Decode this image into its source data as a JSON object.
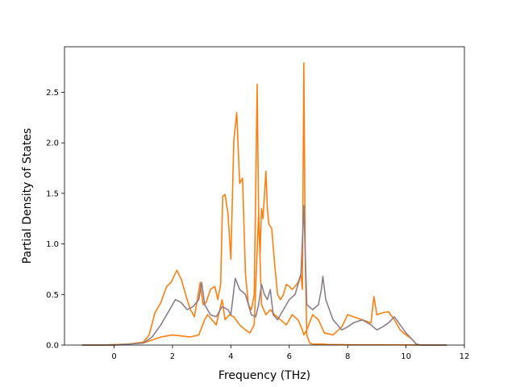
{
  "chart_data": {
    "type": "line",
    "title": "",
    "xlabel": "Frequency (THz)",
    "ylabel": "Partial Density of States",
    "xlim": [
      -1.7,
      12.0
    ],
    "ylim": [
      0,
      2.95
    ],
    "xticks": [
      0,
      2,
      4,
      6,
      8,
      10,
      12
    ],
    "yticks": [
      0.0,
      0.5,
      1.0,
      1.5,
      2.0,
      2.5
    ],
    "xtick_labels": [
      "0",
      "2",
      "4",
      "6",
      "8",
      "10",
      "12"
    ],
    "ytick_labels": [
      "0.0",
      "0.5",
      "1.0",
      "1.5",
      "2.0",
      "2.5"
    ],
    "grid": false,
    "legend": "none",
    "colors": {
      "orange": "#ff7f0e",
      "gray": "#8c7e88"
    },
    "series": [
      {
        "color": "#ff7f0e",
        "x": [
          -1.1,
          -0.5,
          0.0,
          0.5,
          1.0,
          1.2,
          1.4,
          1.6,
          1.8,
          1.95,
          2.05,
          2.15,
          2.3,
          2.45,
          2.6,
          2.75,
          2.85,
          2.95,
          3.0,
          3.05,
          3.15,
          3.3,
          3.45,
          3.55,
          3.65,
          3.72,
          3.8,
          3.9,
          4.0,
          4.1,
          4.2,
          4.3,
          4.4,
          4.5,
          4.6,
          4.7,
          4.8,
          4.9,
          4.95,
          5.0,
          5.05,
          5.1,
          5.2,
          5.25,
          5.3,
          5.4,
          5.5,
          5.6,
          5.7,
          5.8,
          5.9,
          6.0,
          6.1,
          6.2,
          6.3,
          6.4,
          6.45,
          6.5,
          6.55,
          6.6,
          6.7,
          6.8,
          6.9,
          7.0,
          7.1,
          7.2,
          7.3,
          7.4,
          7.6,
          7.8,
          8.0,
          8.2,
          8.4,
          8.6,
          8.7,
          8.8,
          8.85,
          8.95,
          9.05,
          9.2,
          9.35,
          9.5,
          9.7,
          9.9,
          10.1,
          10.25,
          10.35,
          10.5,
          11.4
        ],
        "y": [
          0,
          0,
          0.005,
          0.01,
          0.03,
          0.1,
          0.32,
          0.42,
          0.58,
          0.62,
          0.68,
          0.74,
          0.65,
          0.5,
          0.36,
          0.28,
          0.45,
          0.62,
          0.5,
          0.4,
          0.42,
          0.55,
          0.58,
          0.45,
          0.6,
          1.47,
          1.49,
          1.3,
          0.85,
          2.02,
          2.3,
          1.6,
          1.65,
          0.7,
          0.4,
          0.35,
          0.5,
          2.58,
          1.3,
          0.9,
          1.35,
          1.25,
          1.72,
          1.35,
          1.2,
          1.15,
          0.8,
          0.5,
          0.45,
          0.5,
          0.6,
          0.58,
          0.55,
          0.58,
          0.62,
          0.7,
          0.55,
          2.79,
          0.8,
          0.1,
          0.02,
          0.01,
          0.01,
          0.01,
          0.01,
          0.01,
          0.005,
          0.005,
          0.005,
          0.005,
          0.003,
          0.003,
          0.003,
          0.003,
          0.003,
          0.003,
          0.003,
          0.003,
          0.003,
          0.003,
          0.002,
          0.002,
          0.002,
          0.002,
          0.002,
          0.001,
          0,
          0,
          0
        ]
      },
      {
        "color": "#ff7f0e",
        "x": [
          -1.1,
          0.0,
          0.5,
          1.0,
          1.3,
          1.6,
          2.0,
          2.3,
          2.6,
          2.9,
          3.1,
          3.2,
          3.5,
          3.7,
          3.8,
          3.95,
          4.1,
          4.3,
          4.5,
          4.65,
          4.8,
          4.95,
          5.05,
          5.2,
          5.35,
          5.5,
          5.7,
          5.9,
          6.1,
          6.3,
          6.45,
          6.5,
          6.6,
          6.8,
          7.0,
          7.2,
          7.5,
          7.8,
          8.0,
          8.2,
          8.5,
          8.8,
          8.9,
          9.0,
          9.2,
          9.4,
          9.6,
          9.8,
          10.0,
          10.2,
          10.35,
          10.5,
          11.4
        ],
        "y": [
          0,
          0,
          0.01,
          0.02,
          0.05,
          0.08,
          0.1,
          0.09,
          0.08,
          0.1,
          0.25,
          0.3,
          0.2,
          0.45,
          0.25,
          0.3,
          0.28,
          0.2,
          0.15,
          0.12,
          0.2,
          1.3,
          0.4,
          0.3,
          0.35,
          0.3,
          0.25,
          0.2,
          0.3,
          0.25,
          0.15,
          0.1,
          0.15,
          0.3,
          0.25,
          0.12,
          0.1,
          0.18,
          0.3,
          0.28,
          0.25,
          0.22,
          0.48,
          0.3,
          0.32,
          0.33,
          0.25,
          0.15,
          0.1,
          0.06,
          0.01,
          0,
          0
        ]
      },
      {
        "color": "#8c7e88",
        "x": [
          -1.1,
          0.0,
          0.5,
          1.0,
          1.3,
          1.6,
          1.9,
          2.1,
          2.3,
          2.5,
          2.7,
          2.9,
          3.0,
          3.1,
          3.3,
          3.5,
          3.7,
          3.9,
          4.0,
          4.15,
          4.3,
          4.5,
          4.7,
          4.85,
          4.95,
          5.05,
          5.15,
          5.25,
          5.35,
          5.45,
          5.6,
          5.8,
          6.0,
          6.2,
          6.4,
          6.5,
          6.6,
          6.8,
          7.0,
          7.1,
          7.15,
          7.25,
          7.5,
          7.8,
          8.0,
          8.2,
          8.5,
          8.8,
          9.0,
          9.2,
          9.4,
          9.6,
          9.8,
          10.0,
          10.2,
          10.35,
          10.5,
          11.4
        ],
        "y": [
          0,
          0,
          0.01,
          0.02,
          0.08,
          0.2,
          0.35,
          0.45,
          0.42,
          0.35,
          0.38,
          0.45,
          0.62,
          0.4,
          0.3,
          0.28,
          0.38,
          0.35,
          0.3,
          0.66,
          0.55,
          0.5,
          0.3,
          0.28,
          0.4,
          0.6,
          0.5,
          0.45,
          0.55,
          0.3,
          0.25,
          0.35,
          0.45,
          0.5,
          0.7,
          1.38,
          0.4,
          0.35,
          0.4,
          0.55,
          0.68,
          0.45,
          0.25,
          0.15,
          0.18,
          0.22,
          0.25,
          0.2,
          0.15,
          0.18,
          0.22,
          0.28,
          0.2,
          0.12,
          0.06,
          0.01,
          0,
          0
        ]
      }
    ]
  }
}
